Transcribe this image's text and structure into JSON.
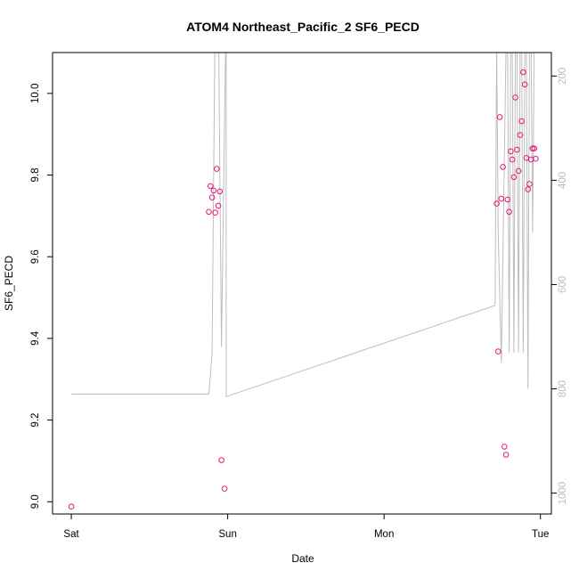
{
  "chart_data": {
    "type": "scatter",
    "title": "ATOM4 Northeast_Pacific_2 SF6_PECD",
    "xlabel": "Date",
    "ylabel": "SF6_PECD",
    "x_tick_labels": [
      "Sat",
      "Sun",
      "Mon",
      "Tue"
    ],
    "x_tick_days": [
      0,
      1,
      2,
      3
    ],
    "xlim_days": [
      -0.12,
      3.07
    ],
    "ylim": [
      8.97,
      10.1
    ],
    "y_ticks": [
      9.0,
      9.2,
      9.4,
      9.6,
      9.8,
      10.0
    ],
    "y2_ticks": [
      200,
      400,
      600,
      800,
      1000
    ],
    "y2_lim": [
      1040,
      155
    ],
    "grid": false,
    "points_color": "#e8157a",
    "line_color": "#bdbdbd",
    "series": [
      {
        "x_days": [
          0.0,
          0.88,
          0.89,
          0.9,
          0.91,
          0.92,
          0.93,
          0.94,
          0.95,
          0.96,
          0.98,
          2.72,
          2.73,
          2.74,
          2.75,
          2.76,
          2.77,
          2.78,
          2.79,
          2.8,
          2.81,
          2.82,
          2.83,
          2.84,
          2.85,
          2.86,
          2.87,
          2.88,
          2.89,
          2.9,
          2.91,
          2.92,
          2.93,
          2.94,
          2.95,
          2.96,
          2.97
        ],
        "values": [
          8.988,
          9.71,
          9.773,
          9.745,
          9.762,
          9.708,
          9.815,
          9.725,
          9.76,
          9.102,
          9.032,
          9.73,
          9.368,
          9.942,
          9.742,
          9.82,
          9.135,
          9.115,
          9.74,
          9.71,
          9.858,
          9.838,
          9.795,
          9.99,
          9.862,
          9.81,
          9.898,
          9.932,
          10.052,
          10.022,
          9.842,
          9.765,
          9.778,
          9.838,
          9.865,
          9.865,
          9.84
        ]
      }
    ],
    "secondary_line": {
      "ylabel": "",
      "x_days": [
        0.0,
        0.88,
        0.9,
        0.92,
        0.94,
        0.96,
        0.99,
        0.99,
        2.71,
        2.72,
        2.73,
        2.75,
        2.78,
        2.79,
        2.8,
        2.81,
        2.82,
        2.83,
        2.84,
        2.85,
        2.86,
        2.87,
        2.88,
        2.89,
        2.9,
        2.91,
        2.92,
        2.93,
        2.94,
        2.95,
        2.96,
        2.97
      ],
      "values": [
        810,
        810,
        730,
        60,
        60,
        720,
        60,
        815,
        640,
        140,
        500,
        750,
        140,
        140,
        730,
        140,
        140,
        730,
        140,
        140,
        730,
        140,
        140,
        730,
        140,
        140,
        800,
        140,
        140,
        500,
        140,
        140
      ]
    }
  }
}
